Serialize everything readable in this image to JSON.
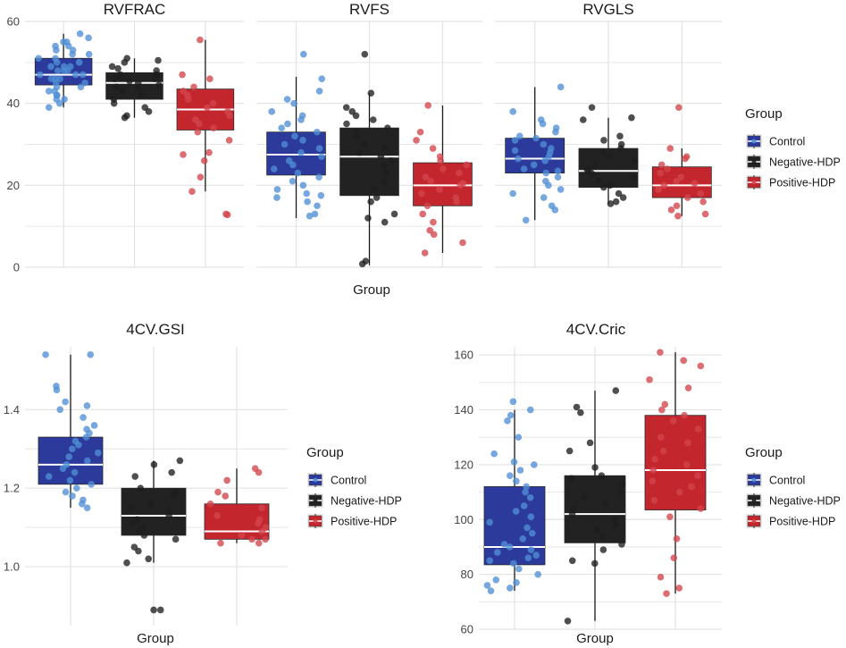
{
  "chart_data": [
    {
      "type": "box",
      "facets": [
        "RVFRAC",
        "RVFS",
        "RVGLS"
      ],
      "xlabel": "Group",
      "ylabel": "",
      "ylim": [
        0,
        60
      ],
      "yticks": [
        0,
        20,
        40,
        60
      ],
      "legend": {
        "title": "Group",
        "position": "right"
      },
      "groups": [
        "Control",
        "Negative-HDP",
        "Positive-HDP"
      ],
      "colors": {
        "Control": "#2b3a9b",
        "Negative-HDP": "#222222",
        "Positive-HDP": "#c4262e"
      },
      "point_colors": {
        "Control": "#4f8fd6",
        "Negative-HDP": "#1e1e1e",
        "Positive-HDP": "#d2454c"
      },
      "boxes": {
        "RVFRAC": [
          {
            "group": "Control",
            "q1": 44.5,
            "median": 47,
            "q3": 51,
            "lower": 39,
            "upper": 57,
            "points": [
              57,
              56,
              55,
              55,
              54,
              54,
              53,
              53,
              52,
              52,
              51,
              51,
              50,
              50,
              49,
              49,
              49,
              48,
              48,
              48,
              47,
              47,
              47,
              46,
              46,
              46,
              45,
              45,
              44,
              44,
              43,
              43,
              42,
              42,
              41,
              41,
              40,
              39
            ]
          },
          {
            "group": "Negative-HDP",
            "q1": 41,
            "median": 45,
            "q3": 47.5,
            "lower": 36.5,
            "upper": 51,
            "points": [
              51,
              50.5,
              50,
              49,
              48.5,
              48,
              47,
              47,
              46,
              46,
              45.5,
              45,
              44.5,
              44,
              43.5,
              43,
              42,
              41,
              40,
              39,
              38,
              37,
              36.5
            ]
          },
          {
            "group": "Positive-HDP",
            "q1": 33.5,
            "median": 38.5,
            "q3": 43.5,
            "lower": 18.5,
            "upper": 55.5,
            "points": [
              55.5,
              47,
              46,
              44,
              43,
              42,
              41,
              40,
              39,
              38,
              37,
              36,
              35,
              34,
              33,
              31,
              28,
              27.5,
              26,
              22,
              18.5,
              13,
              12.8
            ]
          }
        ],
        "RVFS": [
          {
            "group": "Control",
            "q1": 22.5,
            "median": 27.5,
            "q3": 33,
            "lower": 12,
            "upper": 46.5,
            "points": [
              52,
              46,
              43,
              41,
              40,
              38,
              37,
              36,
              35,
              34,
              33,
              32,
              31,
              30,
              29,
              28,
              27,
              26,
              25,
              24,
              23,
              22,
              21,
              20,
              19,
              18,
              17.5,
              17,
              16,
              15,
              13,
              12.5
            ]
          },
          {
            "group": "Negative-HDP",
            "q1": 17.5,
            "median": 27,
            "q3": 34,
            "lower": 0.5,
            "upper": 42.5,
            "points": [
              52,
              42.5,
              39,
              38,
              37,
              36,
              35,
              34,
              33,
              32,
              30,
              29,
              28,
              27,
              26,
              25,
              23,
              21,
              19,
              17,
              16,
              13,
              12,
              11,
              1.5,
              0.8
            ]
          },
          {
            "group": "Positive-HDP",
            "q1": 15,
            "median": 20,
            "q3": 25.5,
            "lower": 3.5,
            "upper": 39.5,
            "points": [
              39.5,
              33,
              31,
              29,
              27,
              26,
              25,
              24,
              23,
              22,
              21,
              20.5,
              20,
              19,
              18,
              17,
              16,
              15,
              13,
              11,
              9,
              8,
              6,
              3.5
            ]
          }
        ],
        "RVGLS": [
          {
            "group": "Control",
            "q1": 23,
            "median": 26.5,
            "q3": 31.5,
            "lower": 11.5,
            "upper": 44,
            "points": [
              44,
              38,
              36,
              35,
              34,
              33,
              32,
              31.5,
              31,
              30,
              29,
              28.5,
              28,
              27,
              26.5,
              26,
              25,
              24,
              23.5,
              23,
              22,
              21,
              20,
              19,
              18,
              17,
              15,
              14,
              11.5
            ]
          },
          {
            "group": "Negative-HDP",
            "q1": 19.5,
            "median": 23.5,
            "q3": 29,
            "lower": 15.5,
            "upper": 36.5,
            "points": [
              39,
              36.5,
              36,
              32,
              31,
              30,
              29,
              28,
              27,
              26,
              25,
              24,
              23.5,
              23,
              22,
              21,
              20,
              19.5,
              18,
              17,
              16,
              15.5
            ]
          },
          {
            "group": "Positive-HDP",
            "q1": 17,
            "median": 20,
            "q3": 24.5,
            "lower": 12.5,
            "upper": 29,
            "points": [
              39,
              29,
              27,
              26.5,
              25,
              24,
              23,
              22,
              21,
              20.5,
              20,
              19,
              18,
              17,
              16,
              15,
              14,
              13,
              12.5
            ]
          }
        ]
      }
    },
    {
      "type": "box",
      "title": "4CV.GSI",
      "xlabel": "Group",
      "ylabel": "",
      "ylim": [
        0.85,
        1.56
      ],
      "yticks": [
        1.0,
        1.2,
        1.4
      ],
      "ytick_labels": [
        "1.0",
        "1.2",
        "1.4"
      ],
      "legend": {
        "title": "Group",
        "position": "right"
      },
      "groups": [
        "Control",
        "Negative-HDP",
        "Positive-HDP"
      ],
      "boxes": [
        {
          "group": "Control",
          "q1": 1.21,
          "median": 1.26,
          "q3": 1.33,
          "lower": 1.15,
          "upper": 1.54,
          "points": [
            1.54,
            1.54,
            1.46,
            1.45,
            1.42,
            1.41,
            1.4,
            1.38,
            1.36,
            1.35,
            1.34,
            1.33,
            1.32,
            1.31,
            1.3,
            1.29,
            1.28,
            1.27,
            1.26,
            1.25,
            1.24,
            1.23,
            1.22,
            1.21,
            1.2,
            1.19,
            1.18,
            1.17,
            1.16,
            1.15
          ]
        },
        {
          "group": "Negative-HDP",
          "q1": 1.08,
          "median": 1.13,
          "q3": 1.2,
          "lower": 1.01,
          "upper": 1.27,
          "points": [
            1.27,
            1.26,
            1.24,
            1.23,
            1.2,
            1.19,
            1.18,
            1.16,
            1.15,
            1.14,
            1.13,
            1.12,
            1.11,
            1.1,
            1.09,
            1.08,
            1.07,
            1.05,
            1.04,
            1.02,
            1.01,
            0.89,
            0.89
          ]
        },
        {
          "group": "Positive-HDP",
          "q1": 1.07,
          "median": 1.09,
          "q3": 1.16,
          "lower": 1.06,
          "upper": 1.25,
          "points": [
            1.25,
            1.24,
            1.22,
            1.19,
            1.18,
            1.16,
            1.15,
            1.13,
            1.12,
            1.11,
            1.1,
            1.09,
            1.08,
            1.07,
            1.07,
            1.06,
            1.06
          ]
        }
      ]
    },
    {
      "type": "box",
      "title": "4CV.Cric",
      "xlabel": "Group",
      "ylabel": "",
      "ylim": [
        60,
        163
      ],
      "yticks": [
        60,
        80,
        100,
        120,
        140,
        160
      ],
      "legend": {
        "title": "Group",
        "position": "right"
      },
      "groups": [
        "Control",
        "Negative-HDP",
        "Positive-HDP"
      ],
      "boxes": [
        {
          "group": "Control",
          "q1": 83.5,
          "median": 90,
          "q3": 112,
          "lower": 74,
          "upper": 140,
          "points": [
            143,
            140,
            138,
            136,
            130,
            124,
            121,
            120,
            118,
            116,
            114,
            112,
            110,
            108,
            105,
            103,
            101,
            99,
            97,
            95,
            93,
            91,
            90,
            89,
            88,
            87,
            86,
            85,
            84,
            82,
            80,
            78,
            77,
            76,
            75,
            74
          ]
        },
        {
          "group": "Negative-HDP",
          "q1": 91.5,
          "median": 102,
          "q3": 116,
          "lower": 63,
          "upper": 147,
          "points": [
            147,
            141,
            139,
            128,
            125,
            119,
            116,
            115,
            113,
            110,
            108,
            106,
            104,
            102,
            100,
            98,
            96,
            94,
            91,
            89,
            85,
            84,
            63
          ]
        },
        {
          "group": "Positive-HDP",
          "q1": 103.5,
          "median": 118,
          "q3": 138,
          "lower": 73,
          "upper": 161,
          "points": [
            161,
            158,
            156,
            151,
            148,
            142,
            140,
            138,
            136,
            133,
            130,
            128,
            125,
            122,
            120,
            118,
            116,
            114,
            112,
            110,
            107,
            104,
            101,
            93,
            86,
            79,
            75,
            73
          ]
        }
      ]
    }
  ]
}
